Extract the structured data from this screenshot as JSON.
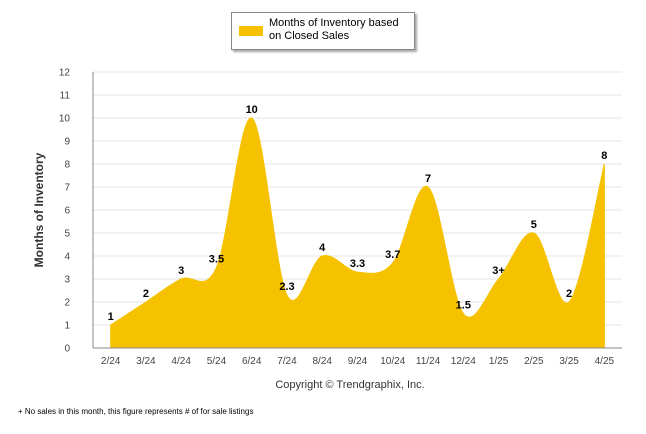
{
  "legend": {
    "label": "Months of Inventory based on Closed Sales"
  },
  "footnote": "+  No sales in this month, this figure represents # of for sale listings",
  "colors": {
    "series": "#f6c200",
    "grid": "#e6e6e6",
    "axis": "#888888"
  },
  "chart_data": {
    "type": "area",
    "title": "",
    "xlabel": "Copyright © Trendgraphix, Inc.",
    "ylabel": "Months of Inventory",
    "ylim": [
      0,
      12
    ],
    "yticks": [
      "0",
      "1",
      "2",
      "3",
      "4",
      "5",
      "6",
      "7",
      "8",
      "9",
      "10",
      "11",
      "12"
    ],
    "categories": [
      "2/24",
      "3/24",
      "4/24",
      "5/24",
      "6/24",
      "7/24",
      "8/24",
      "9/24",
      "10/24",
      "11/24",
      "12/24",
      "1/25",
      "2/25",
      "3/25",
      "4/25"
    ],
    "series": [
      {
        "name": "Months of Inventory based on Closed Sales",
        "values": [
          1,
          2,
          3,
          3.5,
          10,
          2.3,
          4,
          3.3,
          3.7,
          7,
          1.5,
          3,
          5,
          2,
          8
        ],
        "labels": [
          "1",
          "2",
          "3",
          "3.5",
          "10",
          "2.3",
          "4",
          "3.3",
          "3.7",
          "7",
          "1.5",
          "3+",
          "5",
          "2",
          "8"
        ]
      }
    ],
    "grid": true,
    "legend_position": "top-center"
  }
}
